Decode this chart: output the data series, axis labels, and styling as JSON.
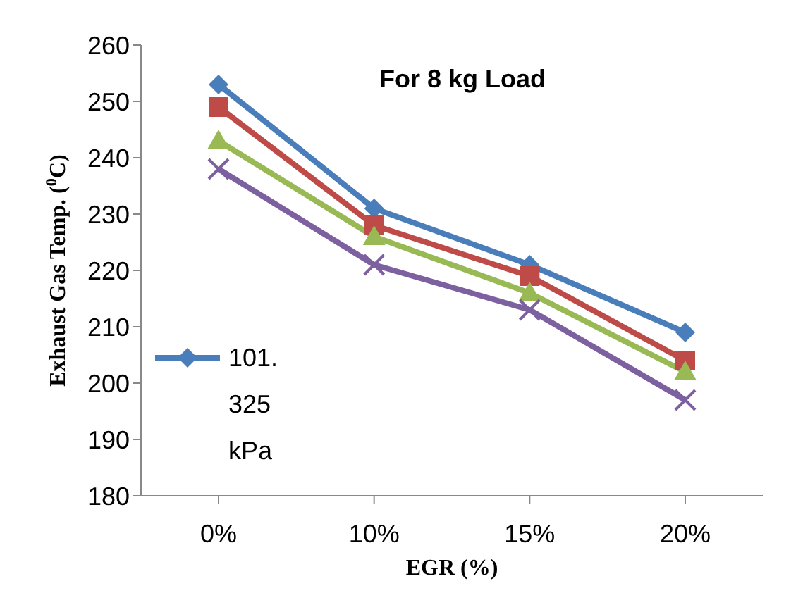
{
  "chart_data": {
    "type": "line",
    "title": "For 8 kg Load",
    "xlabel": "EGR (%)",
    "ylabel": "Exhaust Gas Temp. ($^{0}$C)",
    "categories": [
      "0%",
      "10%",
      "15%",
      "20%"
    ],
    "series": [
      {
        "name": "101.325 kPa",
        "color": "#4a7ebb",
        "marker": "diamond",
        "values": [
          253,
          231,
          221,
          209
        ]
      },
      {
        "color": "#be4b48",
        "marker": "square",
        "values": [
          249,
          228,
          219,
          204
        ]
      },
      {
        "color": "#98b954",
        "marker": "triangle",
        "values": [
          243,
          226,
          216,
          202
        ]
      },
      {
        "color": "#7d60a0",
        "marker": "cross",
        "values": [
          238,
          221,
          213,
          197
        ]
      }
    ],
    "ylim": [
      180,
      260
    ],
    "yticks": [
      180,
      190,
      200,
      210,
      220,
      230,
      240,
      250,
      260
    ],
    "grid": false,
    "legend": "left"
  }
}
